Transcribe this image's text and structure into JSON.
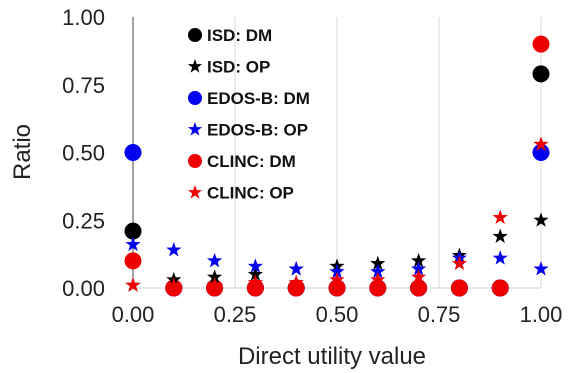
{
  "chart_data": {
    "type": "scatter",
    "xlabel": "Direct utility value",
    "ylabel": "Ratio",
    "xlim": [
      0,
      1
    ],
    "ylim": [
      0,
      1
    ],
    "xticks": [
      "0.00",
      "0.25",
      "0.50",
      "0.75",
      "1.00"
    ],
    "yticks": [
      "0.00",
      "0.25",
      "0.50",
      "0.75",
      "1.00"
    ],
    "grid": "vertical",
    "legend_position": "top-left",
    "series": [
      {
        "name": "ISD: DM",
        "marker": "circle",
        "color": "#000000",
        "points": [
          [
            0.0,
            0.21
          ],
          [
            0.1,
            0.0
          ],
          [
            0.2,
            0.0
          ],
          [
            0.3,
            0.0
          ],
          [
            0.4,
            0.0
          ],
          [
            0.5,
            0.0
          ],
          [
            0.6,
            0.0
          ],
          [
            0.7,
            0.0
          ],
          [
            0.8,
            0.0
          ],
          [
            0.9,
            0.0
          ],
          [
            1.0,
            0.79
          ]
        ]
      },
      {
        "name": "ISD: OP",
        "marker": "star",
        "color": "#000000",
        "points": [
          [
            0.0,
            0.01
          ],
          [
            0.1,
            0.03
          ],
          [
            0.2,
            0.04
          ],
          [
            0.3,
            0.05
          ],
          [
            0.4,
            0.07
          ],
          [
            0.5,
            0.08
          ],
          [
            0.6,
            0.09
          ],
          [
            0.7,
            0.1
          ],
          [
            0.8,
            0.12
          ],
          [
            0.9,
            0.19
          ],
          [
            1.0,
            0.25
          ]
        ]
      },
      {
        "name": "EDOS-B: DM",
        "marker": "circle",
        "color": "#0000ee",
        "points": [
          [
            0.0,
            0.5
          ],
          [
            0.1,
            0.0
          ],
          [
            0.2,
            0.0
          ],
          [
            0.3,
            0.0
          ],
          [
            0.4,
            0.0
          ],
          [
            0.5,
            0.0
          ],
          [
            0.6,
            0.0
          ],
          [
            0.7,
            0.0
          ],
          [
            0.8,
            0.0
          ],
          [
            0.9,
            0.0
          ],
          [
            1.0,
            0.5
          ]
        ]
      },
      {
        "name": "EDOS-B: OP",
        "marker": "star",
        "color": "#0000ee",
        "points": [
          [
            0.0,
            0.16
          ],
          [
            0.1,
            0.14
          ],
          [
            0.2,
            0.1
          ],
          [
            0.3,
            0.08
          ],
          [
            0.4,
            0.07
          ],
          [
            0.5,
            0.06
          ],
          [
            0.6,
            0.06
          ],
          [
            0.7,
            0.07
          ],
          [
            0.8,
            0.11
          ],
          [
            0.9,
            0.11
          ],
          [
            1.0,
            0.07
          ]
        ]
      },
      {
        "name": "CLINC: DM",
        "marker": "circle",
        "color": "#ee0000",
        "points": [
          [
            0.0,
            0.1
          ],
          [
            0.1,
            0.0
          ],
          [
            0.2,
            0.0
          ],
          [
            0.3,
            0.0
          ],
          [
            0.4,
            0.0
          ],
          [
            0.5,
            0.0
          ],
          [
            0.6,
            0.0
          ],
          [
            0.7,
            0.0
          ],
          [
            0.8,
            0.0
          ],
          [
            0.9,
            0.0
          ],
          [
            1.0,
            0.9
          ]
        ]
      },
      {
        "name": "CLINC: OP",
        "marker": "star",
        "color": "#ee0000",
        "points": [
          [
            0.0,
            0.01
          ],
          [
            0.1,
            0.01
          ],
          [
            0.2,
            0.01
          ],
          [
            0.3,
            0.02
          ],
          [
            0.4,
            0.02
          ],
          [
            0.5,
            0.03
          ],
          [
            0.6,
            0.03
          ],
          [
            0.7,
            0.04
          ],
          [
            0.8,
            0.09
          ],
          [
            0.9,
            0.26
          ],
          [
            1.0,
            0.53
          ]
        ]
      }
    ]
  }
}
